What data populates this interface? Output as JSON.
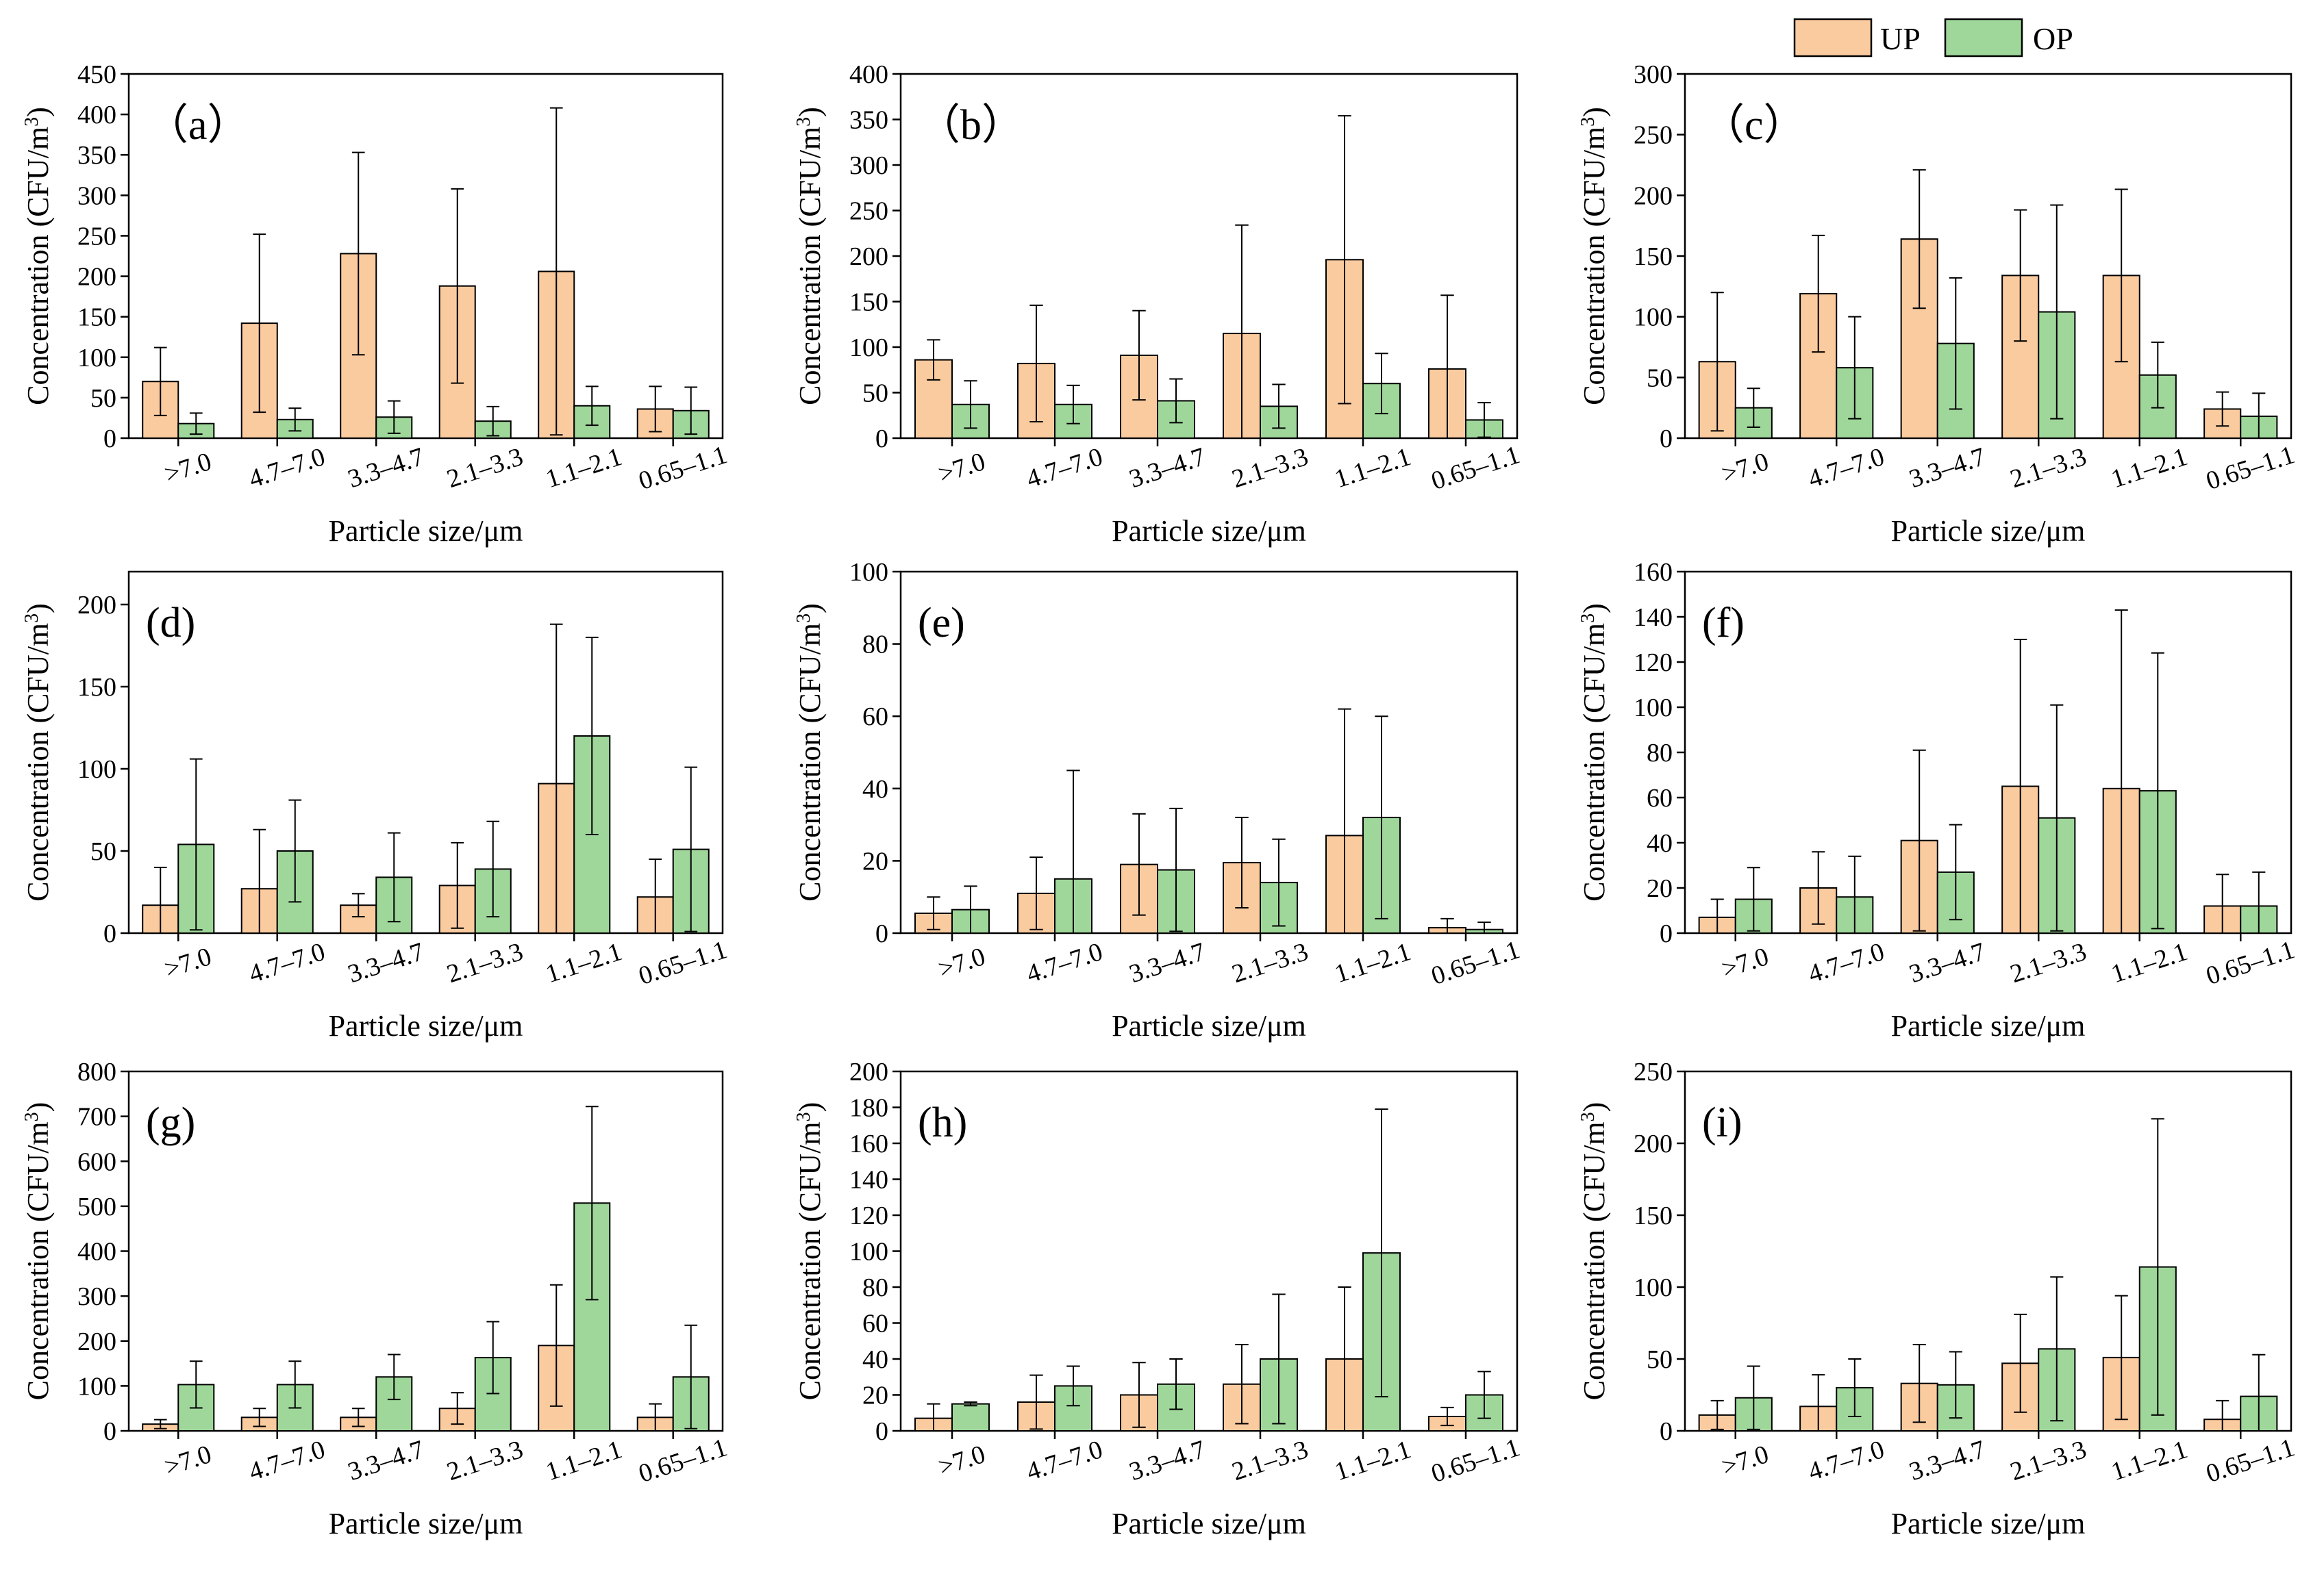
{
  "legend": {
    "items": [
      {
        "name": "UP",
        "color": "#fbcba0"
      },
      {
        "name": "OP",
        "color": "#9fd79b"
      }
    ]
  },
  "chart_data": [
    {
      "type": "bar",
      "label": "（a）",
      "categories": [
        ">7.0",
        "4.7–7.0",
        "3.3–4.7",
        "2.1–3.3",
        "1.1–2.1",
        "0.65–1.1"
      ],
      "series": [
        {
          "name": "UP",
          "values": [
            70,
            142,
            228,
            188,
            206,
            36
          ],
          "errors": [
            42,
            110,
            125,
            120,
            202,
            28
          ]
        },
        {
          "name": "OP",
          "values": [
            18,
            23,
            26,
            21,
            40,
            34
          ],
          "errors": [
            13,
            14,
            20,
            18,
            24,
            29
          ]
        }
      ],
      "ylim": [
        0,
        450
      ],
      "yticks": [
        0,
        50,
        100,
        150,
        200,
        250,
        300,
        350,
        400,
        450
      ],
      "ylabel_main": "Concentration (CFU/m",
      "ylabel_sup": "3",
      "ylabel_close": ")",
      "xlabel": "Particle size/μm"
    },
    {
      "type": "bar",
      "label": "（b）",
      "categories": [
        ">7.0",
        "4.7–7.0",
        "3.3–4.7",
        "2.1–3.3",
        "1.1–2.1",
        "0.65–1.1"
      ],
      "series": [
        {
          "name": "UP",
          "values": [
            86,
            82,
            91,
            115,
            196,
            76
          ],
          "errors": [
            22,
            64,
            49,
            119,
            158,
            81
          ]
        },
        {
          "name": "OP",
          "values": [
            37,
            37,
            41,
            35,
            60,
            20
          ],
          "errors": [
            26,
            21,
            24,
            24,
            33,
            19
          ]
        }
      ],
      "ylim": [
        0,
        400
      ],
      "yticks": [
        0,
        50,
        100,
        150,
        200,
        250,
        300,
        350,
        400
      ],
      "ylabel_main": "Concentration (CFU/m",
      "ylabel_sup": "3",
      "ylabel_close": ")",
      "xlabel": "Particle size/μm"
    },
    {
      "type": "bar",
      "label": "（c）",
      "categories": [
        ">7.0",
        "4.7–7.0",
        "3.3–4.7",
        "2.1–3.3",
        "1.1–2.1",
        "0.65–1.1"
      ],
      "series": [
        {
          "name": "UP",
          "values": [
            63,
            119,
            164,
            134,
            134,
            24
          ],
          "errors": [
            57,
            48,
            57,
            54,
            71,
            14
          ]
        },
        {
          "name": "OP",
          "values": [
            25,
            58,
            78,
            104,
            52,
            18
          ],
          "errors": [
            16,
            42,
            54,
            88,
            27,
            19
          ]
        }
      ],
      "ylim": [
        0,
        300
      ],
      "yticks": [
        0,
        50,
        100,
        150,
        200,
        250,
        300
      ],
      "ylabel_main": "Concentration (CFU/m",
      "ylabel_sup": "3",
      "ylabel_close": ")",
      "xlabel": "Particle size/μm"
    },
    {
      "type": "bar",
      "label": "(d)",
      "categories": [
        ">7.0",
        "4.7–7.0",
        "3.3–4.7",
        "2.1–3.3",
        "1.1–2.1",
        "0.65–1.1"
      ],
      "series": [
        {
          "name": "UP",
          "values": [
            17,
            27,
            17,
            29,
            91,
            22
          ],
          "errors": [
            23,
            36,
            7,
            26,
            97,
            23
          ]
        },
        {
          "name": "OP",
          "values": [
            54,
            50,
            34,
            39,
            120,
            51
          ],
          "errors": [
            52,
            31,
            27,
            29,
            60,
            50
          ]
        }
      ],
      "ylim": [
        0,
        220
      ],
      "yticks": [
        0,
        50,
        100,
        150,
        200
      ],
      "ylabel_main": "Concentration (CFU/m",
      "ylabel_sup": "3",
      "ylabel_close": ")",
      "xlabel": "Particle size/μm"
    },
    {
      "type": "bar",
      "label": "(e)",
      "categories": [
        ">7.0",
        "4.7–7.0",
        "3.3–4.7",
        "2.1–3.3",
        "1.1–2.1",
        "0.65–1.1"
      ],
      "series": [
        {
          "name": "UP",
          "values": [
            5.5,
            11,
            19,
            19.5,
            27,
            1.5
          ],
          "errors": [
            4.5,
            10,
            14,
            12.5,
            35,
            2.5
          ]
        },
        {
          "name": "OP",
          "values": [
            6.5,
            15,
            17.5,
            14,
            32,
            1
          ],
          "errors": [
            6.5,
            30,
            17,
            12,
            28,
            2
          ]
        }
      ],
      "ylim": [
        0,
        100
      ],
      "yticks": [
        0,
        20,
        40,
        60,
        80,
        100
      ],
      "ylabel_main": "Concentration (CFU/m",
      "ylabel_sup": "3",
      "ylabel_close": ")",
      "xlabel": "Particle size/μm"
    },
    {
      "type": "bar",
      "label": "(f)",
      "categories": [
        ">7.0",
        "4.7–7.0",
        "3.3–4.7",
        "2.1–3.3",
        "1.1–2.1",
        "0.65–1.1"
      ],
      "series": [
        {
          "name": "UP",
          "values": [
            7,
            20,
            41,
            65,
            64,
            12
          ],
          "errors": [
            8,
            16,
            40,
            65,
            79,
            14
          ]
        },
        {
          "name": "OP",
          "values": [
            15,
            16,
            27,
            51,
            63,
            12
          ],
          "errors": [
            14,
            18,
            21,
            50,
            61,
            15
          ]
        }
      ],
      "ylim": [
        0,
        160
      ],
      "yticks": [
        0,
        20,
        40,
        60,
        80,
        100,
        120,
        140,
        160
      ],
      "ylabel_main": "Concentration (CFU/m",
      "ylabel_sup": "3",
      "ylabel_close": ")",
      "xlabel": "Particle size/μm"
    },
    {
      "type": "bar",
      "label": "(g)",
      "categories": [
        ">7.0",
        "4.7–7.0",
        "3.3–4.7",
        "2.1–3.3",
        "1.1–2.1",
        "0.65–1.1"
      ],
      "series": [
        {
          "name": "UP",
          "values": [
            15,
            30,
            30,
            50,
            190,
            30
          ],
          "errors": [
            10,
            20,
            20,
            35,
            135,
            30
          ]
        },
        {
          "name": "OP",
          "values": [
            103,
            103,
            120,
            163,
            507,
            120
          ],
          "errors": [
            52,
            52,
            50,
            80,
            215,
            115
          ]
        }
      ],
      "ylim": [
        0,
        800
      ],
      "yticks": [
        0,
        100,
        200,
        300,
        400,
        500,
        600,
        700,
        800
      ],
      "ylabel_main": "Concentration (CFU/m",
      "ylabel_sup": "3",
      "ylabel_close": ")",
      "xlabel": "Particle size/μm"
    },
    {
      "type": "bar",
      "label": "(h)",
      "categories": [
        ">7.0",
        "4.7–7.0",
        "3.3–4.7",
        "2.1–3.3",
        "1.1–2.1",
        "0.65–1.1"
      ],
      "series": [
        {
          "name": "UP",
          "values": [
            7,
            16,
            20,
            26,
            40,
            8
          ],
          "errors": [
            8,
            15,
            18,
            22,
            40,
            5
          ]
        },
        {
          "name": "OP",
          "values": [
            15,
            25,
            26,
            40,
            99,
            20
          ],
          "errors": [
            1,
            11,
            14,
            36,
            80,
            13
          ]
        }
      ],
      "ylim": [
        0,
        200
      ],
      "yticks": [
        0,
        20,
        40,
        60,
        80,
        100,
        120,
        140,
        160,
        180,
        200
      ],
      "ylabel_main": "Concentration (CFU/m",
      "ylabel_sup": "3",
      "ylabel_close": ")",
      "xlabel": "Particle size/μm"
    },
    {
      "type": "bar",
      "label": "(i)",
      "categories": [
        ">7.0",
        "4.7–7.0",
        "3.3–4.7",
        "2.1–3.3",
        "1.1–2.1",
        "0.65–1.1"
      ],
      "series": [
        {
          "name": "UP",
          "values": [
            11,
            17,
            33,
            47,
            51,
            8
          ],
          "errors": [
            10,
            22,
            27,
            34,
            43,
            13
          ]
        },
        {
          "name": "OP",
          "values": [
            23,
            30,
            32,
            57,
            114,
            24
          ],
          "errors": [
            22,
            20,
            23,
            50,
            103,
            29
          ]
        }
      ],
      "ylim": [
        0,
        250
      ],
      "yticks": [
        0,
        50,
        100,
        150,
        200,
        250
      ],
      "ylabel_main": "Concentration (CFU/m",
      "ylabel_sup": "3",
      "ylabel_close": ")",
      "xlabel": "Particle size/μm"
    }
  ]
}
